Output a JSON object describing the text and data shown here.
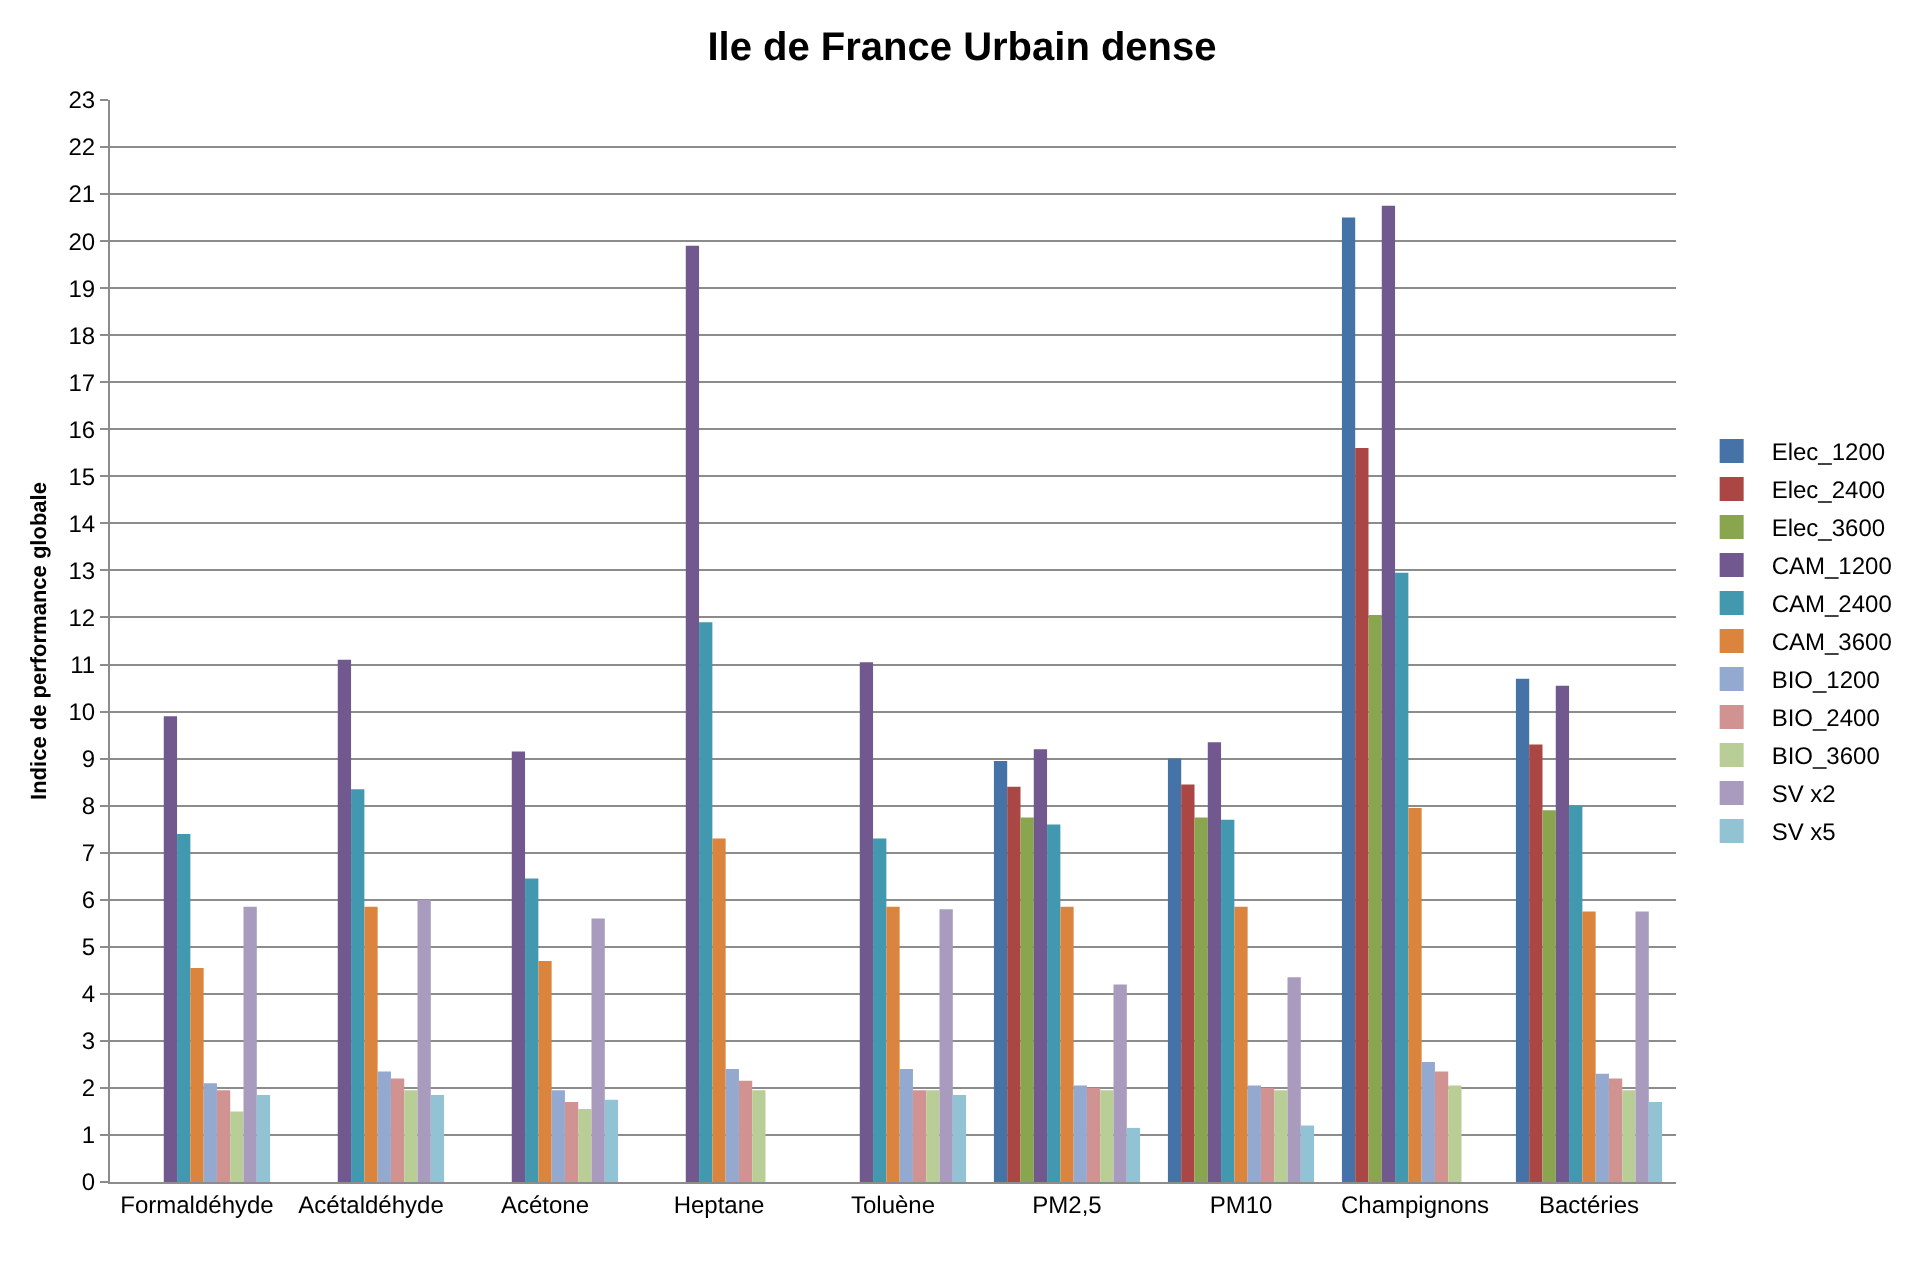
{
  "chart_data": {
    "type": "bar",
    "title": "Ile de France Urbain dense",
    "ylabel": "Indice de performance globale",
    "categories": [
      "Formaldéhyde",
      "Acétaldéhyde",
      "Acétone",
      "Heptane",
      "Toluène",
      "PM2,5",
      "PM10",
      "Champignons",
      "Bactéries"
    ],
    "series": [
      {
        "name": "Elec_1200",
        "color": "#4572a7",
        "values": [
          null,
          null,
          null,
          null,
          null,
          8.95,
          9.0,
          20.5,
          10.7
        ]
      },
      {
        "name": "Elec_2400",
        "color": "#aa4643",
        "values": [
          null,
          null,
          null,
          null,
          null,
          8.4,
          8.45,
          15.6,
          9.3
        ]
      },
      {
        "name": "Elec_3600",
        "color": "#89a54e",
        "values": [
          null,
          null,
          null,
          null,
          null,
          7.75,
          7.75,
          12.05,
          7.9
        ]
      },
      {
        "name": "CAM_1200",
        "color": "#71588f",
        "values": [
          9.9,
          11.1,
          9.15,
          19.9,
          11.05,
          9.2,
          9.35,
          20.75,
          10.55
        ]
      },
      {
        "name": "CAM_2400",
        "color": "#4198af",
        "values": [
          7.4,
          8.35,
          6.45,
          11.9,
          7.3,
          7.6,
          7.7,
          12.95,
          8.0
        ]
      },
      {
        "name": "CAM_3600",
        "color": "#db843d",
        "values": [
          4.55,
          5.85,
          4.7,
          7.3,
          5.85,
          5.85,
          5.85,
          7.95,
          5.75
        ]
      },
      {
        "name": "BIO_1200",
        "color": "#93a9cf",
        "values": [
          2.1,
          2.35,
          1.95,
          2.4,
          2.4,
          2.05,
          2.05,
          2.55,
          2.3
        ]
      },
      {
        "name": "BIO_2400",
        "color": "#d19392",
        "values": [
          1.95,
          2.2,
          1.7,
          2.15,
          1.95,
          2.0,
          2.0,
          2.35,
          2.2
        ]
      },
      {
        "name": "BIO_3600",
        "color": "#b9cd96",
        "values": [
          1.5,
          1.95,
          1.55,
          1.95,
          1.95,
          1.95,
          1.95,
          2.05,
          1.95
        ]
      },
      {
        "name": "SV x2",
        "color": "#a99bbd",
        "values": [
          5.85,
          6.0,
          5.6,
          null,
          5.8,
          4.2,
          4.35,
          null,
          5.75
        ]
      },
      {
        "name": "SV x5",
        "color": "#91c3d5",
        "values": [
          1.85,
          1.85,
          1.75,
          null,
          1.85,
          1.15,
          1.2,
          null,
          1.7
        ]
      }
    ],
    "ylim": [
      0,
      23
    ],
    "yticks": [
      0,
      1,
      2,
      3,
      4,
      5,
      6,
      7,
      8,
      9,
      10,
      11,
      12,
      13,
      14,
      15,
      16,
      17,
      18,
      19,
      20,
      21,
      22,
      23
    ],
    "grid": "y",
    "legend": "right"
  }
}
